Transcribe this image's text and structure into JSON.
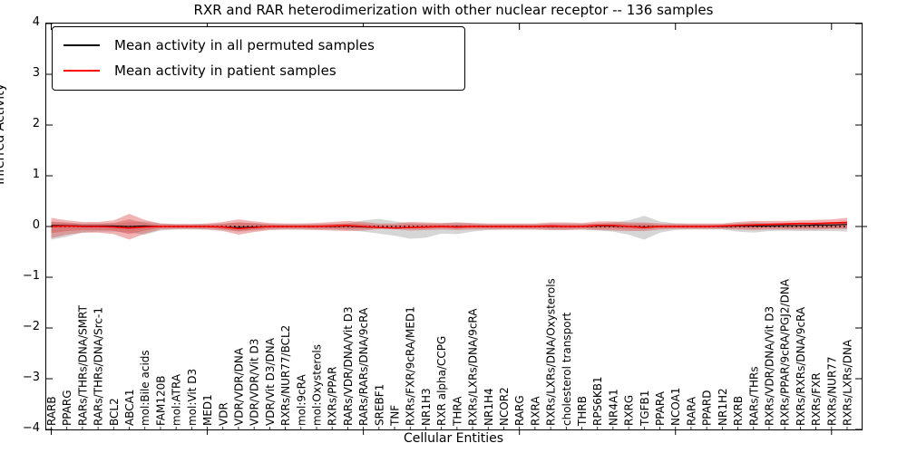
{
  "chart_data": {
    "type": "line",
    "title": "RXR and RAR heterodimerization with other nuclear receptor -- 136 samples",
    "xlabel": "Cellular Entities",
    "ylabel": "Inferred Activity",
    "ylim": [
      -4,
      4
    ],
    "yticklabels": [
      "4",
      "3",
      "2",
      "1",
      "0",
      "−1",
      "−2",
      "−3",
      "−4"
    ],
    "legend_position": "upper left",
    "grid": false,
    "categories": [
      "RARB",
      "PPARG",
      "RARs/THRs/DNA/SMRT",
      "RARs/THRs/DNA/Src-1",
      "BCL2",
      "ABCA1",
      "mol:Bile acids",
      "FAM120B",
      "mol:ATRA",
      "mol:Vit D3",
      "MED1",
      "VDR",
      "VDR/VDR/DNA",
      "VDR/VDR/Vit D3",
      "VDR/Vit D3/DNA",
      "RXRs/NUR77/BCL2",
      "mol:9cRA",
      "mol:Oxysterols",
      "RXRs/PPAR",
      "RARs/VDR/DNA/Vit D3",
      "RARs/RARs/DNA/9cRA",
      "SREBF1",
      "TNF",
      "RXRs/FXR/9cRA/MED1",
      "NR1H3",
      "RXR alpha/CCPG",
      "THRA",
      "RXRs/LXRs/DNA/9cRA",
      "NR1H4",
      "NCOR2",
      "RARG",
      "RXRA",
      "RXRs/LXRs/DNA/Oxysterols",
      "cholesterol transport",
      "THRB",
      "RPS6KB1",
      "NR4A1",
      "RXRG",
      "TGFB1",
      "PPARA",
      "NCOA1",
      "RARA",
      "PPARD",
      "NR1H2",
      "RXRB",
      "RARs/THRs",
      "RXRs/VDR/DNA/Vit D3",
      "RXRs/PPAR/9cRA/PGJ2/DNA",
      "RXRs/RXRs/DNA/9cRA",
      "RXRs/FXR",
      "RXRs/NUR77",
      "RXRs/LXRs/DNA"
    ],
    "series": [
      {
        "name": "Mean activity in all permuted samples",
        "color": "#000000",
        "style": "solid",
        "values": [
          0.02,
          0.02,
          0.01,
          0.01,
          0.01,
          0,
          0.01,
          0,
          0,
          0,
          0,
          -0.01,
          -0.02,
          -0.01,
          0,
          0,
          0,
          0,
          0,
          0.01,
          -0.01,
          -0.02,
          -0.03,
          -0.02,
          -0.01,
          0,
          0,
          0,
          0,
          0,
          0,
          0,
          0,
          0,
          0,
          0.01,
          0.01,
          0,
          -0.01,
          0,
          0,
          0,
          0,
          0,
          0.01,
          0.01,
          0.01,
          0.02,
          0.02,
          0.03,
          0.03,
          0.04
        ]
      },
      {
        "name": "Mean activity in patient samples",
        "color": "#ff0000",
        "style": "solid",
        "values": [
          0,
          0.01,
          0,
          0,
          -0.01,
          -0.03,
          -0.01,
          0,
          0,
          0,
          0,
          -0.01,
          -0.04,
          -0.02,
          0,
          0,
          0,
          0,
          0.01,
          0.02,
          0,
          -0.02,
          -0.03,
          -0.02,
          -0.01,
          0,
          -0.01,
          0,
          0,
          0,
          0,
          0,
          0.01,
          0,
          0,
          0.02,
          0.02,
          0,
          -0.02,
          0,
          0,
          0,
          0,
          0.01,
          0.02,
          0.03,
          0.04,
          0.05,
          0.06,
          0.06,
          0.07,
          0.08
        ]
      }
    ],
    "zero_line": {
      "value": 0,
      "color": "#000000",
      "style": "dotted"
    },
    "bands": [
      {
        "name": "permuted-std-band",
        "color": "#787878",
        "alpha": 0.3,
        "upper": [
          0.1,
          0.08,
          0.06,
          0.06,
          0.06,
          0.08,
          0.1,
          0.06,
          0.05,
          0.05,
          0.05,
          0.06,
          0.08,
          0.07,
          0.05,
          0.05,
          0.05,
          0.05,
          0.05,
          0.06,
          0.12,
          0.15,
          0.1,
          0.07,
          0.06,
          0.06,
          0.08,
          0.06,
          0.05,
          0.05,
          0.05,
          0.05,
          0.06,
          0.06,
          0.05,
          0.06,
          0.08,
          0.12,
          0.21,
          0.1,
          0.06,
          0.05,
          0.05,
          0.05,
          0.07,
          0.08,
          0.07,
          0.07,
          0.07,
          0.07,
          0.07,
          0.08
        ],
        "lower": [
          -0.26,
          -0.2,
          -0.12,
          -0.1,
          -0.1,
          -0.12,
          -0.16,
          -0.08,
          -0.06,
          -0.06,
          -0.06,
          -0.07,
          -0.1,
          -0.08,
          -0.06,
          -0.06,
          -0.06,
          -0.06,
          -0.06,
          -0.07,
          -0.1,
          -0.14,
          -0.18,
          -0.24,
          -0.22,
          -0.14,
          -0.15,
          -0.1,
          -0.07,
          -0.06,
          -0.06,
          -0.06,
          -0.07,
          -0.07,
          -0.06,
          -0.08,
          -0.1,
          -0.16,
          -0.26,
          -0.12,
          -0.07,
          -0.06,
          -0.06,
          -0.06,
          -0.1,
          -0.12,
          -0.09,
          -0.08,
          -0.09,
          -0.09,
          -0.09,
          -0.1
        ]
      },
      {
        "name": "patient-std-outer-band",
        "color": "#dd4444",
        "alpha": 0.4,
        "upper": [
          0.17,
          0.12,
          0.09,
          0.09,
          0.12,
          0.25,
          0.13,
          0.06,
          0.05,
          0.05,
          0.06,
          0.09,
          0.14,
          0.1,
          0.07,
          0.06,
          0.06,
          0.07,
          0.09,
          0.11,
          0.09,
          0.06,
          0.06,
          0.09,
          0.08,
          0.07,
          0.08,
          0.07,
          0.06,
          0.06,
          0.06,
          0.06,
          0.08,
          0.08,
          0.07,
          0.1,
          0.1,
          0.08,
          0.08,
          0.06,
          0.06,
          0.06,
          0.06,
          0.06,
          0.09,
          0.11,
          0.11,
          0.11,
          0.12,
          0.13,
          0.14,
          0.17
        ],
        "lower": [
          -0.23,
          -0.16,
          -0.12,
          -0.12,
          -0.15,
          -0.26,
          -0.14,
          -0.06,
          -0.05,
          -0.05,
          -0.06,
          -0.09,
          -0.16,
          -0.11,
          -0.07,
          -0.06,
          -0.06,
          -0.07,
          -0.08,
          -0.09,
          -0.08,
          -0.05,
          -0.05,
          -0.08,
          -0.07,
          -0.06,
          -0.07,
          -0.06,
          -0.06,
          -0.06,
          -0.06,
          -0.06,
          -0.07,
          -0.07,
          -0.06,
          -0.07,
          -0.08,
          -0.09,
          -0.09,
          -0.06,
          -0.05,
          -0.05,
          -0.05,
          -0.05,
          -0.06,
          -0.07,
          -0.06,
          -0.06,
          -0.06,
          -0.06,
          -0.05,
          -0.05
        ]
      },
      {
        "name": "patient-std-inner-band",
        "color": "#dd4444",
        "alpha": 0.4,
        "upper": [
          0.09,
          0.07,
          0.05,
          0.05,
          0.07,
          0.14,
          0.07,
          0.03,
          0.03,
          0.03,
          0.03,
          0.05,
          0.08,
          0.06,
          0.04,
          0.03,
          0.03,
          0.04,
          0.05,
          0.06,
          0.05,
          0.03,
          0.03,
          0.05,
          0.04,
          0.04,
          0.04,
          0.04,
          0.03,
          0.03,
          0.03,
          0.03,
          0.04,
          0.04,
          0.04,
          0.06,
          0.06,
          0.05,
          0.05,
          0.03,
          0.03,
          0.03,
          0.03,
          0.03,
          0.05,
          0.06,
          0.06,
          0.06,
          0.07,
          0.07,
          0.08,
          0.1
        ],
        "lower": [
          -0.13,
          -0.09,
          -0.07,
          -0.07,
          -0.08,
          -0.15,
          -0.08,
          -0.03,
          -0.03,
          -0.03,
          -0.03,
          -0.05,
          -0.09,
          -0.06,
          -0.04,
          -0.03,
          -0.03,
          -0.04,
          -0.04,
          -0.05,
          -0.04,
          -0.03,
          -0.03,
          -0.04,
          -0.04,
          -0.03,
          -0.04,
          -0.03,
          -0.03,
          -0.03,
          -0.03,
          -0.03,
          -0.04,
          -0.04,
          -0.03,
          -0.04,
          -0.04,
          -0.05,
          -0.05,
          -0.03,
          -0.03,
          -0.03,
          -0.03,
          -0.03,
          -0.03,
          -0.04,
          -0.03,
          -0.03,
          -0.03,
          -0.03,
          -0.03,
          -0.03
        ]
      }
    ]
  }
}
